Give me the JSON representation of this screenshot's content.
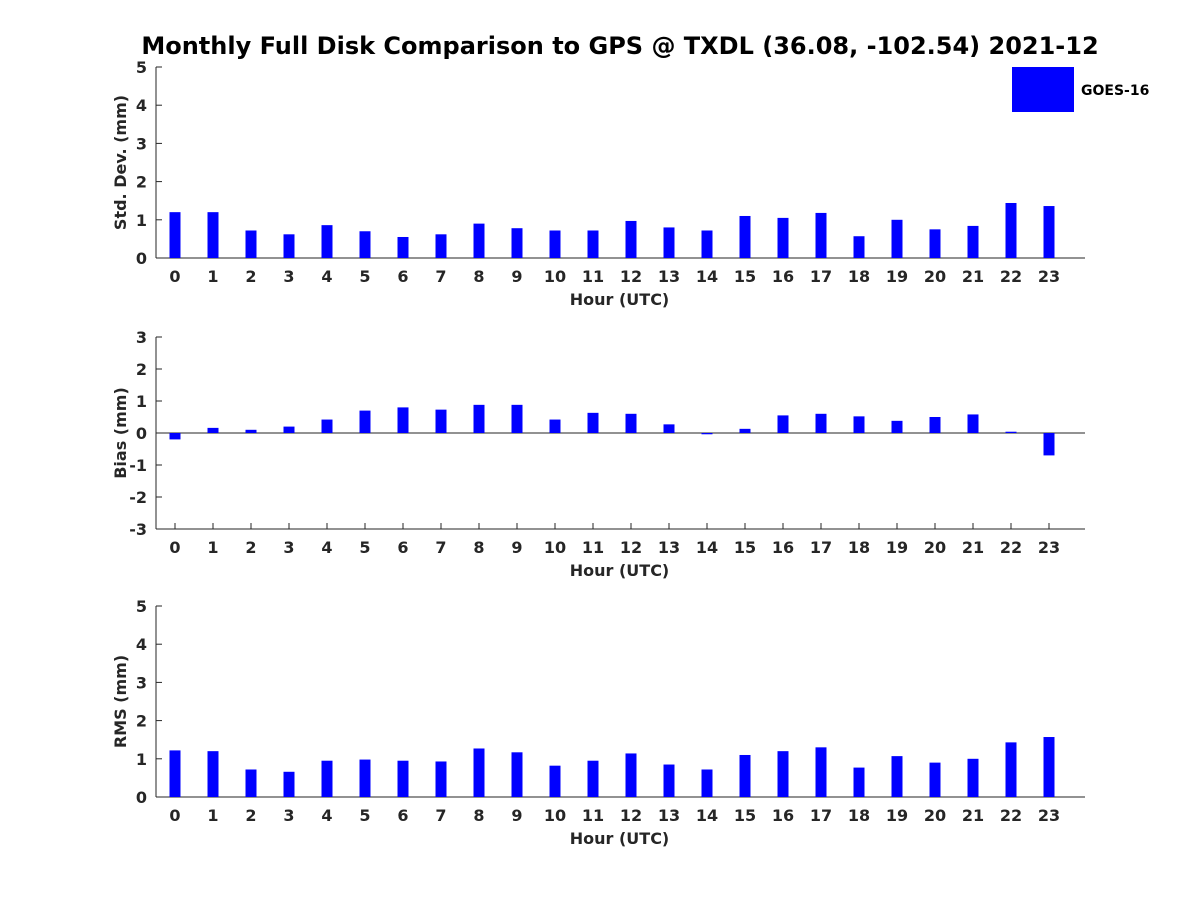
{
  "title": "Monthly Full Disk Comparison to GPS @ TXDL (36.08, -102.54) 2021-12",
  "legend": {
    "label": "GOES-16",
    "color": "#0000ff",
    "placement": "top-right"
  },
  "chart_data": [
    {
      "type": "bar",
      "xlabel": "Hour (UTC)",
      "ylabel": "Std. Dev. (mm)",
      "ylim": [
        0,
        5
      ],
      "yticks": [
        0,
        1,
        2,
        3,
        4,
        5
      ],
      "categories": [
        "0",
        "1",
        "2",
        "3",
        "4",
        "5",
        "6",
        "7",
        "8",
        "9",
        "10",
        "11",
        "12",
        "13",
        "14",
        "15",
        "16",
        "17",
        "18",
        "19",
        "20",
        "21",
        "22",
        "23"
      ],
      "series": [
        {
          "name": "GOES-16",
          "color": "#0000ff",
          "values": [
            1.2,
            1.2,
            0.72,
            0.62,
            0.86,
            0.7,
            0.55,
            0.62,
            0.9,
            0.78,
            0.72,
            0.72,
            0.97,
            0.8,
            0.72,
            1.1,
            1.05,
            1.18,
            0.57,
            1.0,
            0.75,
            0.84,
            1.44,
            1.36
          ]
        }
      ]
    },
    {
      "type": "bar",
      "xlabel": "Hour (UTC)",
      "ylabel": "Bias (mm)",
      "ylim": [
        -3,
        3
      ],
      "yticks": [
        -3,
        -2,
        -1,
        0,
        1,
        2,
        3
      ],
      "categories": [
        "0",
        "1",
        "2",
        "3",
        "4",
        "5",
        "6",
        "7",
        "8",
        "9",
        "10",
        "11",
        "12",
        "13",
        "14",
        "15",
        "16",
        "17",
        "18",
        "19",
        "20",
        "21",
        "22",
        "23"
      ],
      "series": [
        {
          "name": "GOES-16",
          "color": "#0000ff",
          "values": [
            -0.2,
            0.16,
            0.1,
            0.2,
            0.42,
            0.7,
            0.8,
            0.73,
            0.88,
            0.88,
            0.42,
            0.63,
            0.6,
            0.27,
            -0.04,
            0.13,
            0.55,
            0.6,
            0.52,
            0.38,
            0.5,
            0.58,
            0.04,
            -0.7
          ]
        }
      ]
    },
    {
      "type": "bar",
      "xlabel": "Hour (UTC)",
      "ylabel": "RMS (mm)",
      "ylim": [
        0,
        5
      ],
      "yticks": [
        0,
        1,
        2,
        3,
        4,
        5
      ],
      "categories": [
        "0",
        "1",
        "2",
        "3",
        "4",
        "5",
        "6",
        "7",
        "8",
        "9",
        "10",
        "11",
        "12",
        "13",
        "14",
        "15",
        "16",
        "17",
        "18",
        "19",
        "20",
        "21",
        "22",
        "23"
      ],
      "series": [
        {
          "name": "GOES-16",
          "color": "#0000ff",
          "values": [
            1.22,
            1.2,
            0.72,
            0.66,
            0.95,
            0.98,
            0.95,
            0.93,
            1.27,
            1.17,
            0.82,
            0.95,
            1.14,
            0.85,
            0.72,
            1.1,
            1.2,
            1.3,
            0.77,
            1.07,
            0.9,
            1.0,
            1.43,
            1.57
          ]
        }
      ]
    }
  ]
}
